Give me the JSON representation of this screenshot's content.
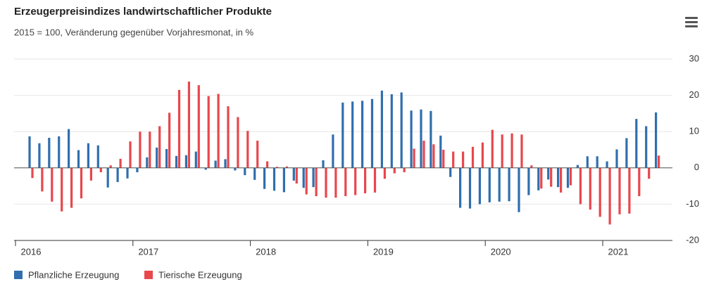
{
  "chart_data": {
    "type": "bar",
    "title": "Erzeugerpreisindizes landwirtschaftlicher Produkte",
    "subtitle": "2015 = 100, Veränderung gegenüber Vorjahresmonat, in %",
    "categories": [
      "2016",
      null,
      null,
      null,
      null,
      null,
      null,
      null,
      null,
      null,
      null,
      null,
      "2017",
      null,
      null,
      null,
      null,
      null,
      null,
      null,
      null,
      null,
      null,
      null,
      "2018",
      null,
      null,
      null,
      null,
      null,
      null,
      null,
      null,
      null,
      null,
      null,
      "2019",
      null,
      null,
      null,
      null,
      null,
      null,
      null,
      null,
      null,
      null,
      null,
      "2020",
      null,
      null,
      null,
      null,
      null,
      null,
      null,
      null,
      null,
      null,
      null,
      "2021",
      null,
      null,
      null,
      null
    ],
    "series": [
      {
        "name": "Pflanzliche Erzeugung",
        "color": "#2f6fae",
        "values": [
          8.7,
          6.8,
          8.3,
          8.7,
          10.7,
          4.9,
          6.8,
          6.2,
          -5.4,
          -3.9,
          -2.9,
          -1.2,
          2.9,
          5.6,
          5.2,
          3.3,
          3.5,
          4.5,
          -0.5,
          2.0,
          2.4,
          -0.7,
          -2.0,
          -3.3,
          -5.8,
          -6.3,
          -6.7,
          -3.5,
          -5.5,
          -5.3,
          2.1,
          9.2,
          18.0,
          18.3,
          18.5,
          19.0,
          21.3,
          20.3,
          20.8,
          15.8,
          16.1,
          15.7,
          8.9,
          -2.5,
          -11.0,
          -11.2,
          -10.0,
          -9.5,
          -9.3,
          -9.2,
          -12.2,
          -7.5,
          -6.2,
          -3.2,
          -5.3,
          -5.5,
          0.8,
          3.2,
          3.2,
          1.8,
          5.1,
          8.2,
          13.5,
          11.5,
          15.3
        ]
      },
      {
        "name": "Tierische Erzeugung",
        "color": "#e8474c",
        "values": [
          -2.8,
          -6.5,
          -9.3,
          -12.0,
          -11.0,
          -8.4,
          -3.5,
          -1.2,
          0.7,
          2.5,
          7.3,
          10.0,
          10.0,
          11.5,
          15.2,
          21.5,
          23.8,
          22.8,
          19.8,
          20.4,
          17.0,
          14.0,
          10.2,
          7.5,
          1.8,
          0.3,
          0.4,
          -4.3,
          -7.3,
          -7.8,
          -8.2,
          -8.2,
          -7.8,
          -7.5,
          -7.0,
          -6.8,
          -3.0,
          -1.5,
          -1.2,
          5.3,
          7.5,
          6.5,
          5.0,
          4.5,
          4.5,
          5.8,
          7.0,
          10.5,
          9.2,
          9.5,
          9.2,
          0.7,
          -5.7,
          -5.2,
          -6.8,
          -4.8,
          -10.0,
          -11.5,
          -13.5,
          -15.6,
          -12.8,
          -12.6,
          -7.8,
          -3.0,
          3.4
        ]
      }
    ],
    "ylim": [
      -20,
      30
    ],
    "yticks": [
      -20,
      -10,
      0,
      10,
      20,
      30
    ],
    "grid": true
  }
}
